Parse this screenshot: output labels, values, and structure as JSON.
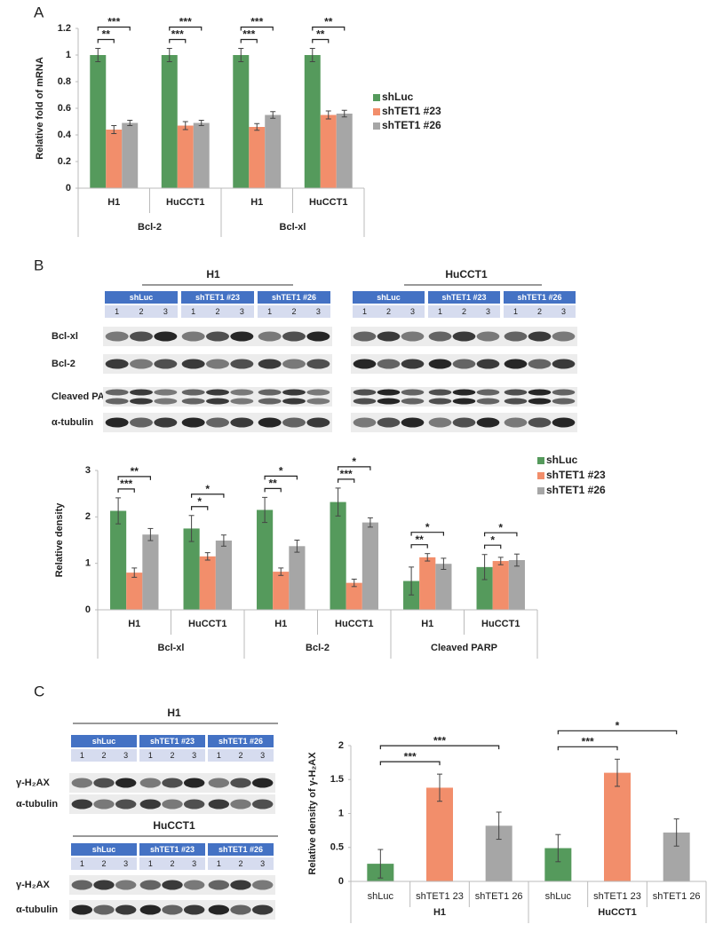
{
  "panel_labels": [
    "A",
    "B",
    "C"
  ],
  "blot_b": {
    "cell_lines": [
      "H1",
      "HuCCT1"
    ],
    "groups": [
      "shLuc",
      "shTET1 #23",
      "shTET1 #26"
    ],
    "lanes": [
      1,
      2,
      3
    ],
    "rows": [
      "Bcl-xl",
      "Bcl-2",
      "Cleaved PARP",
      "α-tubulin"
    ]
  },
  "blot_c": {
    "cell_lines": [
      "H1",
      "HuCCT1"
    ],
    "groups": [
      "shLuc",
      "shTET1 #23",
      "shTET1 #26"
    ],
    "lanes": [
      1,
      2,
      3
    ],
    "rows": [
      "γ-H₂AX",
      "α-tubulin"
    ]
  },
  "chart_data": [
    {
      "type": "bar",
      "ylabel": "Relative fold of mRNA",
      "categories": [
        "H1",
        "HuCCT1",
        "H1",
        "HuCCT1"
      ],
      "groups": [
        "Bcl-2",
        "Bcl-xl"
      ],
      "series": [
        {
          "name": "shLuc",
          "color": "#559a5c",
          "values": [
            1,
            1,
            1,
            1
          ],
          "errors": [
            0.05,
            0.05,
            0.05,
            0.05
          ]
        },
        {
          "name": "shTET1 #23",
          "color": "#f28e6b",
          "values": [
            0.44,
            0.47,
            0.46,
            0.55
          ],
          "errors": [
            0.03,
            0.03,
            0.025,
            0.03
          ],
          "significance": [
            "**",
            "***",
            "***",
            "**"
          ]
        },
        {
          "name": "shTET1 #26",
          "color": "#a6a6a6",
          "values": [
            0.49,
            0.49,
            0.55,
            0.56
          ],
          "errors": [
            0.02,
            0.02,
            0.025,
            0.025
          ],
          "significance": [
            "***",
            "***",
            "***",
            "**"
          ]
        }
      ],
      "ylim": [
        0,
        1.2
      ],
      "yticks": [
        0,
        0.2,
        0.4,
        0.6,
        0.8,
        1,
        1.2
      ],
      "legend": "right"
    },
    {
      "type": "bar",
      "ylabel": "Relative density",
      "categories": [
        "H1",
        "HuCCT1",
        "H1",
        "HuCCT1",
        "H1",
        "HuCCT1"
      ],
      "groups": [
        "Bcl-xl",
        "Bcl-2",
        "Cleaved PARP"
      ],
      "series": [
        {
          "name": "shLuc",
          "color": "#559a5c",
          "values": [
            2.13,
            1.75,
            2.15,
            2.32,
            0.62,
            0.92
          ],
          "errors": [
            0.28,
            0.28,
            0.27,
            0.3,
            0.3,
            0.27
          ]
        },
        {
          "name": "shTET1 #23",
          "color": "#f28e6b",
          "values": [
            0.8,
            1.15,
            0.82,
            0.58,
            1.13,
            1.05
          ],
          "errors": [
            0.1,
            0.08,
            0.08,
            0.08,
            0.08,
            0.08
          ],
          "significance": [
            "***",
            "*",
            "**",
            "***",
            "**",
            "*"
          ]
        },
        {
          "name": "shTET1 #26",
          "color": "#a6a6a6",
          "values": [
            1.62,
            1.49,
            1.37,
            1.88,
            0.99,
            1.07
          ],
          "errors": [
            0.13,
            0.12,
            0.13,
            0.1,
            0.12,
            0.13
          ],
          "significance": [
            "**",
            "*",
            "*",
            "*",
            "*",
            "*"
          ]
        }
      ],
      "ylim": [
        0,
        3
      ],
      "yticks": [
        0,
        1,
        2,
        3
      ],
      "legend": "top-right"
    },
    {
      "type": "bar",
      "ylabel": "Relative density of γ-H₂AX",
      "categories": [
        "shLuc",
        "shTET1 23",
        "shTET1 26",
        "shLuc",
        "shTET1 23",
        "shTET1 26"
      ],
      "groups": [
        "H1",
        "HuCCT1"
      ],
      "values": [
        0.26,
        1.38,
        0.82,
        0.49,
        1.6,
        0.72
      ],
      "errors": [
        0.21,
        0.2,
        0.2,
        0.2,
        0.2,
        0.2
      ],
      "colors": [
        "#559a5c",
        "#f28e6b",
        "#a6a6a6",
        "#559a5c",
        "#f28e6b",
        "#a6a6a6"
      ],
      "significance": [
        null,
        "***",
        "***",
        null,
        "***",
        "*"
      ],
      "ylim": [
        0,
        2
      ],
      "yticks": [
        0,
        0.5,
        1,
        1.5,
        2
      ]
    }
  ]
}
